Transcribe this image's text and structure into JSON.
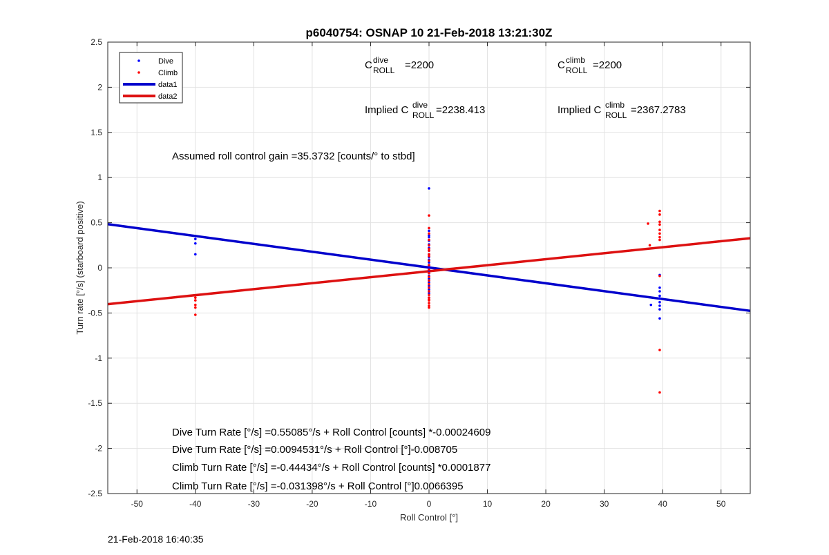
{
  "chart_data": {
    "type": "scatter",
    "title": "p6040754: OSNAP 10 21-Feb-2018 13:21:30Z",
    "xlabel": "Roll Control [°]",
    "ylabel": "Turn rate [°/s] (starboard positive)",
    "xlim": [
      -55,
      55
    ],
    "ylim": [
      -2.5,
      2.5
    ],
    "xticks": [
      -50,
      -40,
      -30,
      -20,
      -10,
      0,
      10,
      20,
      30,
      40,
      50
    ],
    "yticks": [
      -2.5,
      -2,
      -1.5,
      -1,
      -0.5,
      0,
      0.5,
      1,
      1.5,
      2,
      2.5
    ],
    "grid": true,
    "legend_position": "top-left",
    "series": [
      {
        "name": "Dive",
        "kind": "points",
        "color": "#0000ff",
        "x": [
          -40,
          -40,
          -40,
          0,
          0,
          0,
          0,
          0,
          0,
          0,
          0,
          0,
          0,
          0,
          0,
          0,
          0,
          0,
          0,
          0,
          0,
          0,
          0,
          0,
          0,
          0,
          0,
          39.5,
          39.5,
          39.5,
          39.5,
          39.5,
          39.5,
          39.5,
          39.5,
          39.5,
          38
        ],
        "y": [
          0.32,
          0.27,
          0.15,
          0.88,
          0.41,
          0.36,
          0.34,
          0.3,
          0.26,
          0.22,
          0.19,
          0.15,
          0.12,
          0.09,
          0.06,
          0.03,
          0.01,
          -0.01,
          -0.03,
          -0.06,
          -0.09,
          -0.12,
          -0.16,
          -0.2,
          -0.24,
          -0.28,
          -0.33,
          -0.08,
          -0.22,
          -0.26,
          -0.31,
          -0.34,
          -0.38,
          -0.42,
          -0.46,
          -0.56,
          -0.41
        ]
      },
      {
        "name": "Climb",
        "kind": "points",
        "color": "#ff0000",
        "x": [
          -40,
          -40,
          -40,
          -40,
          -40,
          0,
          0,
          0,
          0,
          0,
          0,
          0,
          0,
          0,
          0,
          0,
          0,
          0,
          0,
          0,
          0,
          0,
          0,
          0,
          0,
          0,
          0,
          0,
          0,
          0,
          39.5,
          39.5,
          39.5,
          39.5,
          39.5,
          39.5,
          39.5,
          39.5,
          39.5,
          39.5,
          39.5,
          37.5,
          37.8
        ],
        "y": [
          -0.33,
          -0.36,
          -0.41,
          -0.44,
          -0.52,
          0.58,
          0.44,
          0.38,
          0.31,
          0.25,
          0.19,
          0.13,
          0.08,
          0.03,
          -0.02,
          -0.06,
          -0.1,
          -0.14,
          -0.18,
          -0.22,
          -0.26,
          -0.3,
          -0.33,
          -0.36,
          -0.39,
          -0.42,
          -0.44,
          0.21,
          0.15,
          -0.35,
          0.63,
          0.59,
          0.51,
          0.48,
          0.42,
          0.38,
          0.34,
          0.31,
          -0.09,
          -0.91,
          -1.38,
          0.49,
          0.25
        ]
      },
      {
        "name": "data1",
        "kind": "line",
        "color": "#0000cc",
        "x": [
          -55,
          55
        ],
        "y": [
          0.4836,
          -0.4765
        ]
      },
      {
        "name": "data2",
        "kind": "line",
        "color": "#dd1111",
        "x": [
          -55,
          55
        ],
        "y": [
          -0.4024,
          0.3279
        ]
      }
    ],
    "annotations": {
      "c_dive": {
        "label": "C",
        "sup": "dive",
        "sub": "ROLL",
        "value": "=2200"
      },
      "c_climb": {
        "label": "C",
        "sup": "climb",
        "sub": "ROLL",
        "value": "=2200"
      },
      "implied_dive": {
        "label": "Implied C",
        "sup": "dive",
        "sub": "ROLL",
        "value": "=2238.413"
      },
      "implied_climb": {
        "label": "Implied C",
        "sup": "climb",
        "sub": "ROLL",
        "value": "=2367.2783"
      },
      "gain": "Assumed roll control gain =35.3732 [counts/° to stbd]",
      "eq1": "Dive Turn Rate [°/s] =0.55085°/s + Roll Control [counts] *-0.00024609",
      "eq2": "Dive Turn Rate [°/s] =0.0094531°/s + Roll Control [°]-0.008705",
      "eq3": "Climb Turn Rate [°/s] =-0.44434°/s + Roll Control [counts] *0.0001877",
      "eq4": "Climb Turn Rate [°/s] =-0.031398°/s + Roll Control [°]0.0066395"
    }
  },
  "footer_timestamp": "21-Feb-2018 16:40:35"
}
